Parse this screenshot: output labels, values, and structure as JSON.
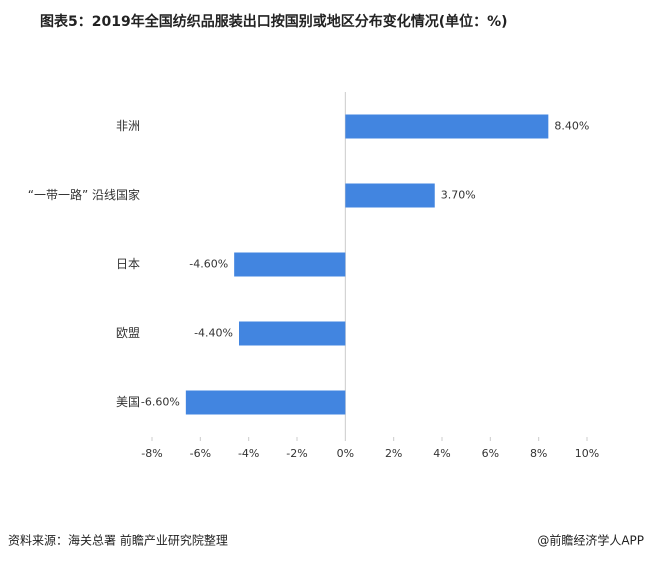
{
  "chart_data": {
    "type": "hbar",
    "title": "图表5：2019年全国纺织品服装出口按国别或地区分布变化情况(单位：%)",
    "categories": [
      "非洲",
      "“一带一路” 沿线国家",
      "日本",
      "欧盟",
      "美国"
    ],
    "values": [
      8.4,
      3.7,
      -4.6,
      -4.4,
      -6.6
    ],
    "value_labels": [
      "8.40%",
      "3.70%",
      "-4.60%",
      "-4.40%",
      "-6.60%"
    ],
    "color": "#4285e0",
    "xlim": [
      -8,
      10
    ],
    "xticks": [
      {
        "value": -8,
        "label": "-8%"
      },
      {
        "value": -6,
        "label": "-6%"
      },
      {
        "value": -4,
        "label": "-4%"
      },
      {
        "value": -2,
        "label": "-2%"
      },
      {
        "value": 0,
        "label": "0%"
      },
      {
        "value": 2,
        "label": "2%"
      },
      {
        "value": 4,
        "label": "4%"
      },
      {
        "value": 6,
        "label": "6%"
      },
      {
        "value": 8,
        "label": "8%"
      },
      {
        "value": 10,
        "label": "10%"
      }
    ],
    "source": "资料来源：海关总署 前瞻产业研究院整理",
    "credit": "@前瞻经济学人APP"
  }
}
